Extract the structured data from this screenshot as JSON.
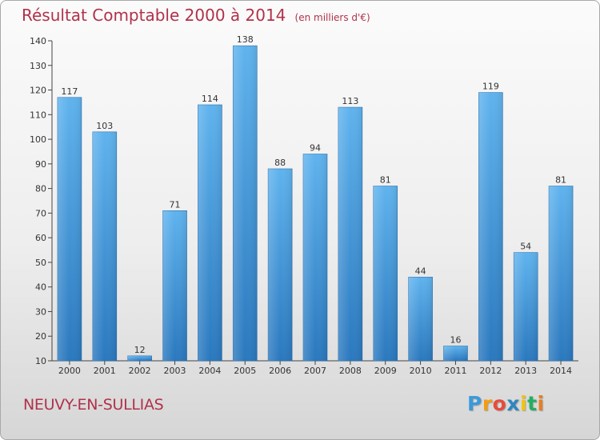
{
  "chart_data": {
    "type": "bar",
    "title": "Résultat Comptable 2000 à 2014",
    "subtitle": "(en milliers d'€)",
    "categories": [
      "2000",
      "2001",
      "2002",
      "2003",
      "2004",
      "2005",
      "2006",
      "2007",
      "2008",
      "2009",
      "2010",
      "2011",
      "2012",
      "2013",
      "2014"
    ],
    "values": [
      117,
      103,
      12,
      71,
      114,
      138,
      88,
      94,
      113,
      81,
      44,
      16,
      119,
      54,
      81
    ],
    "ylim": [
      10,
      140
    ],
    "yticks": [
      10,
      20,
      30,
      40,
      50,
      60,
      70,
      80,
      90,
      100,
      110,
      120,
      130,
      140
    ],
    "xlabel": "",
    "ylabel": "",
    "grid": false,
    "bar_color": "#3d8fd6"
  },
  "place": {
    "name": "NEUVY-EN-SULLIAS"
  },
  "logo": {
    "text": "Proxiti",
    "letters": [
      {
        "ch": "P",
        "color": "#3a9ad9"
      },
      {
        "ch": "r",
        "color": "#f39c12"
      },
      {
        "ch": "o",
        "color": "#e74c3c"
      },
      {
        "ch": "x",
        "color": "#2e86c1"
      },
      {
        "ch": "i",
        "color": "#f1c40f"
      },
      {
        "ch": "t",
        "color": "#27ae60"
      },
      {
        "ch": "i",
        "color": "#e67e22"
      }
    ]
  },
  "colors": {
    "accent": "#b0324a",
    "axis": "#444444",
    "label": "#333333"
  }
}
